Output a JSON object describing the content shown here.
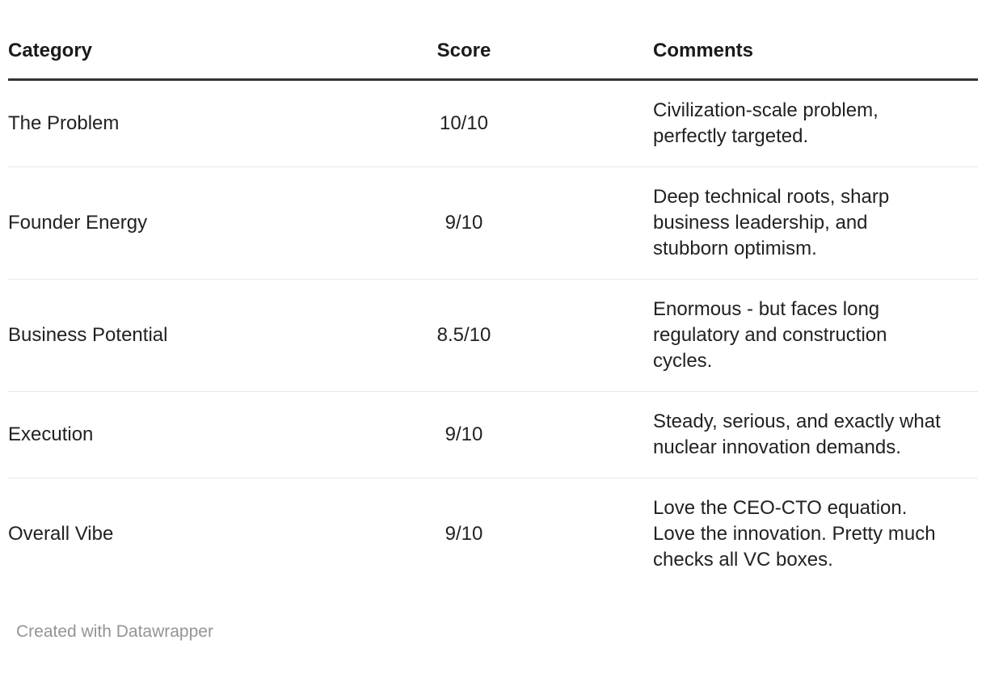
{
  "table": {
    "columns": [
      {
        "key": "category",
        "label": "Category",
        "align": "left"
      },
      {
        "key": "score",
        "label": "Score",
        "align": "center"
      },
      {
        "key": "comments",
        "label": "Comments",
        "align": "left"
      }
    ],
    "rows": [
      {
        "category": "The Problem",
        "score": "10/10",
        "comments": "Civilization-scale problem, perfectly targeted."
      },
      {
        "category": "Founder Energy",
        "score": "9/10",
        "comments": "Deep technical roots, sharp business leadership, and stubborn optimism."
      },
      {
        "category": "Business Potential",
        "score": "8.5/10",
        "comments": "Enormous - but faces long regulatory and construction cycles."
      },
      {
        "category": "Execution",
        "score": "9/10",
        "comments": "Steady, serious, and exactly what nuclear innovation demands."
      },
      {
        "category": "Overall Vibe",
        "score": "9/10",
        "comments": "Love the CEO-CTO equation. Love the innovation. Pretty much checks all VC boxes."
      }
    ]
  },
  "footer": {
    "attribution": "Created with Datawrapper"
  },
  "colors": {
    "header_text": "#1a1a1a",
    "body_text": "#222222",
    "header_rule": "#333333",
    "row_divider": "#e8e8e8",
    "attribution_text": "#949494",
    "background": "#ffffff"
  },
  "chart_data": {
    "type": "table",
    "columns": [
      "Category",
      "Score",
      "Comments"
    ],
    "rows": [
      [
        "The Problem",
        "10/10",
        "Civilization-scale problem, perfectly targeted."
      ],
      [
        "Founder Energy",
        "9/10",
        "Deep technical roots, sharp business leadership, and stubborn optimism."
      ],
      [
        "Business Potential",
        "8.5/10",
        "Enormous - but faces long regulatory and construction cycles."
      ],
      [
        "Execution",
        "9/10",
        "Steady, serious, and exactly what nuclear innovation demands."
      ],
      [
        "Overall Vibe",
        "9/10",
        "Love the CEO-CTO equation. Love the innovation. Pretty much checks all VC boxes."
      ]
    ],
    "scores_numeric": [
      10,
      9,
      8.5,
      9,
      9
    ],
    "score_scale": 10,
    "title": "",
    "legend": "none",
    "grid": "horizontal-dividers",
    "attribution": "Created with Datawrapper"
  }
}
